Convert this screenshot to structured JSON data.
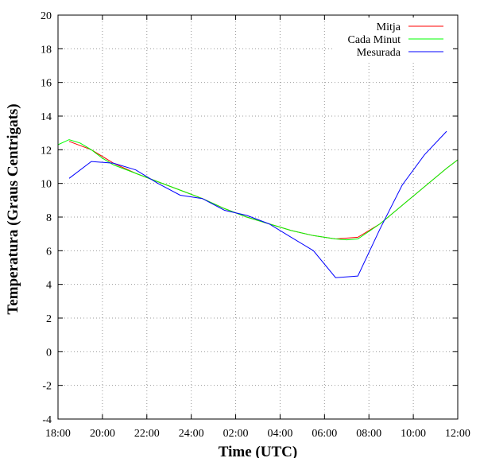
{
  "chart_data": {
    "type": "line",
    "title": "",
    "xlabel": "Time (UTC)",
    "ylabel": "Temperatura (Graus Centrigats)",
    "x_tick_labels": [
      "18:00",
      "20:00",
      "22:00",
      "24:00",
      "02:00",
      "04:00",
      "06:00",
      "08:00",
      "10:00",
      "12:00"
    ],
    "y_tick_labels": [
      "-4",
      "-2",
      "0",
      "2",
      "4",
      "6",
      "8",
      "10",
      "12",
      "14",
      "16",
      "18",
      "20"
    ],
    "xlim": [
      18,
      36
    ],
    "ylim": [
      -4,
      20
    ],
    "grid": true,
    "legend_position": "top-right",
    "series": [
      {
        "name": "Mitja",
        "color": "#ff0000",
        "x": [
          18.5,
          19.5,
          20.5,
          21.5,
          22.5,
          23.5,
          24.5,
          25.5,
          26.5,
          27.5,
          28.5,
          29.5,
          30.5,
          31.5,
          32.5,
          33.5,
          34.5,
          35.5,
          36.0
        ],
        "y": [
          12.5,
          12.0,
          11.2,
          10.6,
          10.1,
          9.6,
          9.1,
          8.5,
          8.0,
          7.6,
          7.2,
          6.9,
          6.7,
          6.8,
          7.6,
          8.7,
          9.8,
          10.9,
          11.4
        ]
      },
      {
        "name": "Cada Minut",
        "color": "#00ff00",
        "x": [
          18.0,
          18.5,
          19.0,
          19.5,
          20.0,
          20.5,
          21.5,
          22.5,
          23.5,
          24.5,
          25.5,
          26.5,
          27.5,
          28.5,
          29.5,
          30.5,
          31.0,
          31.5,
          32.5,
          33.5,
          34.5,
          35.5,
          36.0
        ],
        "y": [
          12.3,
          12.6,
          12.4,
          12.0,
          11.5,
          11.1,
          10.6,
          10.1,
          9.6,
          9.1,
          8.5,
          8.0,
          7.6,
          7.2,
          6.9,
          6.7,
          6.65,
          6.7,
          7.6,
          8.7,
          9.8,
          10.9,
          11.4
        ]
      },
      {
        "name": "Mesurada",
        "color": "#0000ff",
        "x": [
          18.5,
          19.5,
          20.5,
          21.5,
          22.5,
          23.5,
          24.5,
          25.5,
          26.5,
          27.5,
          28.5,
          29.5,
          30.5,
          31.5,
          32.5,
          33.5,
          34.5,
          35.5
        ],
        "y": [
          10.3,
          11.3,
          11.2,
          10.8,
          10.0,
          9.3,
          9.1,
          8.4,
          8.1,
          7.6,
          6.8,
          6.0,
          4.4,
          4.5,
          7.3,
          9.9,
          11.7,
          13.1
        ]
      }
    ]
  }
}
